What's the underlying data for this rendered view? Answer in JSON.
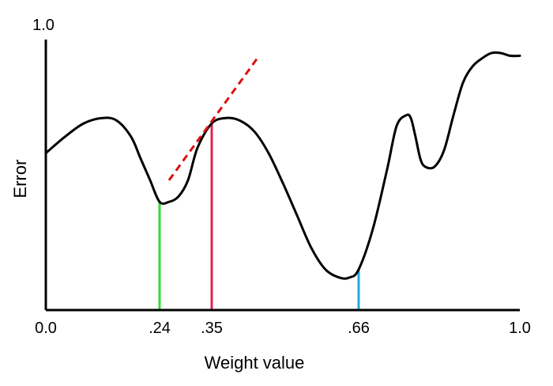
{
  "chart_data": {
    "type": "line",
    "title": "",
    "xlabel": "Weight value",
    "ylabel": "Error",
    "xlim": [
      0.0,
      1.0
    ],
    "ylim": [
      0.0,
      1.0
    ],
    "grid": false,
    "x_tick_labels": [
      {
        "value": 0.0,
        "label": "0.0"
      },
      {
        "value": 0.24,
        "label": ".24"
      },
      {
        "value": 0.35,
        "label": ".35"
      },
      {
        "value": 0.66,
        "label": ".66"
      },
      {
        "value": 1.0,
        "label": "1.0"
      }
    ],
    "y_tick_labels": [
      {
        "value": 1.0,
        "label": "1.0"
      }
    ],
    "series": [
      {
        "color": "#000000",
        "x": [
          0.0,
          0.04,
          0.08,
          0.12,
          0.15,
          0.18,
          0.2,
          0.22,
          0.24,
          0.26,
          0.28,
          0.3,
          0.32,
          0.35,
          0.38,
          0.41,
          0.44,
          0.47,
          0.5,
          0.53,
          0.56,
          0.59,
          0.62,
          0.64,
          0.66,
          0.69,
          0.72,
          0.74,
          0.76,
          0.77,
          0.78,
          0.79,
          0.8,
          0.82,
          0.84,
          0.86,
          0.88,
          0.9,
          0.92,
          0.94,
          0.96,
          0.98,
          1.0
        ],
        "y": [
          0.58,
          0.64,
          0.69,
          0.71,
          0.7,
          0.64,
          0.56,
          0.48,
          0.4,
          0.4,
          0.42,
          0.48,
          0.6,
          0.69,
          0.71,
          0.7,
          0.66,
          0.58,
          0.47,
          0.35,
          0.23,
          0.15,
          0.12,
          0.12,
          0.15,
          0.3,
          0.52,
          0.68,
          0.72,
          0.71,
          0.64,
          0.56,
          0.53,
          0.53,
          0.59,
          0.72,
          0.84,
          0.9,
          0.93,
          0.95,
          0.95,
          0.94,
          0.94
        ]
      }
    ],
    "markers": [
      {
        "x": 0.24,
        "y": 0.4,
        "color": "#33dd33"
      },
      {
        "x": 0.35,
        "y": 0.69,
        "color": "#dd2255"
      },
      {
        "x": 0.66,
        "y": 0.15,
        "color": "#22aadd"
      }
    ],
    "tangent": {
      "color": "#dd1111",
      "x": [
        0.26,
        0.45
      ],
      "y": [
        0.48,
        0.94
      ]
    }
  }
}
